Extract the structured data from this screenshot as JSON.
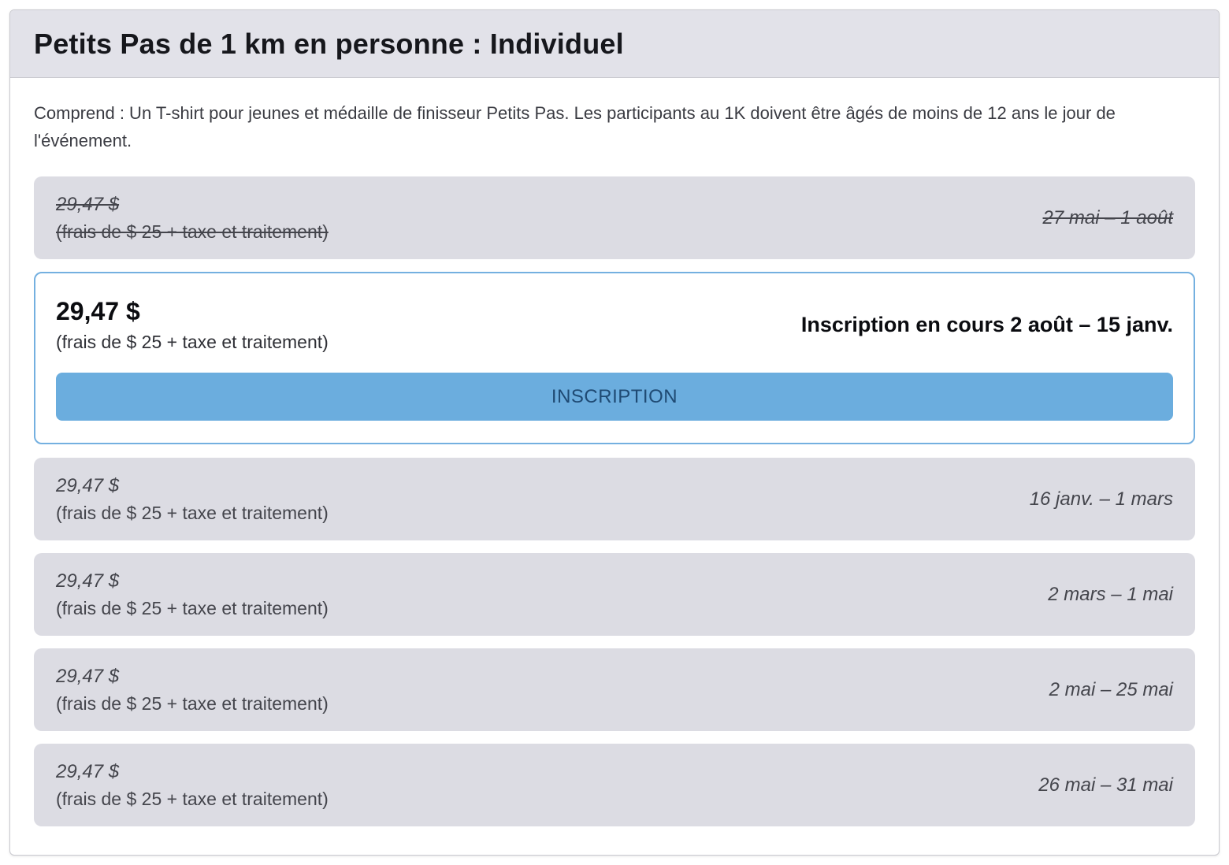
{
  "colors": {
    "header_bg": "#e2e2e9",
    "tier_bg": "#dcdce3",
    "active_border": "#74b0e0",
    "button_bg": "#6badde",
    "button_text": "#1f4a73",
    "title_text": "#16171c",
    "body_text": "#3a3b42",
    "tier_text": "#44454c"
  },
  "header": {
    "title": "Petits Pas de 1 km en personne : Individuel"
  },
  "description": "Comprend : Un T-shirt pour jeunes et médaille de finisseur Petits Pas. Les participants au 1K doivent être âgés de moins de 12 ans le jour de l'événement.",
  "pricing_tiers": [
    {
      "state": "expired",
      "price": "29,47 $",
      "fees": "(frais de $ 25 + taxe et traitement)",
      "dates": "27 mai – 1 août"
    },
    {
      "state": "active",
      "price": "29,47 $",
      "fees": "(frais de $ 25 + taxe et traitement)",
      "status_label": "Inscription en cours 2 août – 15 janv.",
      "button_label": "INSCRIPTION"
    },
    {
      "state": "upcoming",
      "price": "29,47 $",
      "fees": "(frais de $ 25 + taxe et traitement)",
      "dates": "16 janv. – 1 mars"
    },
    {
      "state": "upcoming",
      "price": "29,47 $",
      "fees": "(frais de $ 25 + taxe et traitement)",
      "dates": "2 mars – 1 mai"
    },
    {
      "state": "upcoming",
      "price": "29,47 $",
      "fees": "(frais de $ 25 + taxe et traitement)",
      "dates": "2 mai – 25 mai"
    },
    {
      "state": "upcoming",
      "price": "29,47 $",
      "fees": "(frais de $ 25 + taxe et traitement)",
      "dates": "26 mai – 31 mai"
    }
  ]
}
